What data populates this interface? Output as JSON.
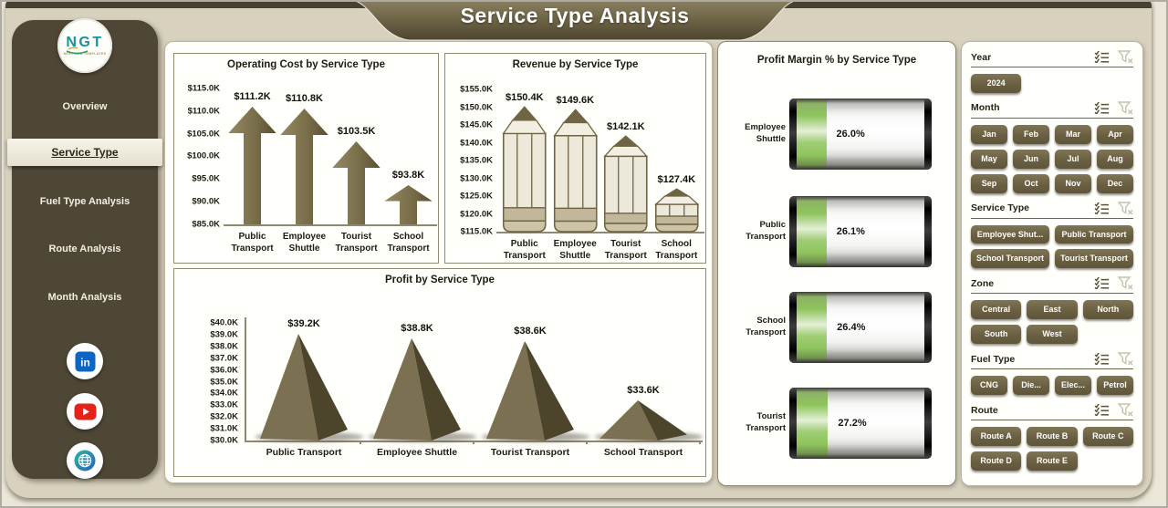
{
  "page": {
    "title": "Service Type Analysis"
  },
  "sidebar": {
    "logo": {
      "abbr": "NGT",
      "tagline": "NEXT GEN TEMPLATES"
    },
    "items": [
      {
        "label": "Overview",
        "active": false
      },
      {
        "label": "Service Type",
        "active": true
      },
      {
        "label": "Fuel Type Analysis",
        "active": false
      },
      {
        "label": "Route Analysis",
        "active": false
      },
      {
        "label": "Month Analysis",
        "active": false
      }
    ],
    "social": [
      {
        "icon": "linkedin-icon"
      },
      {
        "icon": "youtube-icon"
      },
      {
        "icon": "globe-icon"
      }
    ]
  },
  "chart_data": [
    {
      "type": "bar",
      "variant": "arrow",
      "title": "Operating Cost by Service Type",
      "categories": [
        "Public Transport",
        "Employee Shuttle",
        "Tourist Transport",
        "School Transport"
      ],
      "values": [
        111.2,
        110.8,
        103.5,
        93.8
      ],
      "value_labels": [
        "$111.2K",
        "$110.8K",
        "$103.5K",
        "$93.8K"
      ],
      "ytick_labels": [
        "$115.0K",
        "$110.0K",
        "$105.0K",
        "$100.0K",
        "$95.0K",
        "$90.0K",
        "$85.0K"
      ],
      "ylim": [
        85,
        115
      ],
      "grid": false
    },
    {
      "type": "bar",
      "variant": "pencil",
      "title": "Revenue by Service Type",
      "categories": [
        "Public Transport",
        "Employee Shuttle",
        "Tourist Transport",
        "School Transport"
      ],
      "values": [
        150.4,
        149.6,
        142.1,
        127.4
      ],
      "value_labels": [
        "$150.4K",
        "$149.6K",
        "$142.1K",
        "$127.4K"
      ],
      "ytick_labels": [
        "$155.0K",
        "$150.0K",
        "$145.0K",
        "$140.0K",
        "$135.0K",
        "$130.0K",
        "$125.0K",
        "$120.0K",
        "$115.0K"
      ],
      "ylim": [
        115,
        155
      ],
      "grid": false
    },
    {
      "type": "bar",
      "variant": "pyramid",
      "title": "Profit by Service Type",
      "categories": [
        "Public Transport",
        "Employee Shuttle",
        "Tourist Transport",
        "School Transport"
      ],
      "values": [
        39.2,
        38.8,
        38.6,
        33.6
      ],
      "value_labels": [
        "$39.2K",
        "$38.8K",
        "$38.6K",
        "$33.6K"
      ],
      "ytick_labels": [
        "$40.0K",
        "$39.0K",
        "$38.0K",
        "$37.0K",
        "$36.0K",
        "$35.0K",
        "$34.0K",
        "$33.0K",
        "$32.0K",
        "$31.0K",
        "$30.0K"
      ],
      "ylim": [
        30,
        40
      ],
      "grid": false
    },
    {
      "type": "bar",
      "variant": "battery",
      "orientation": "horizontal",
      "title": "Profit Margin % by Service Type",
      "categories": [
        "Employee Shuttle",
        "Public Transport",
        "School Transport",
        "Tourist Transport"
      ],
      "values": [
        26.0,
        26.1,
        26.4,
        27.2
      ],
      "value_labels": [
        "26.0%",
        "26.1%",
        "26.4%",
        "27.2%"
      ],
      "xlim": [
        0,
        100
      ],
      "fill_color": "#8ec45c"
    }
  ],
  "filters": {
    "multi_select_icon": "checklist-icon",
    "clear_filter_icon": "funnel-x-icon",
    "sections": [
      {
        "label": "Year",
        "cols": 3,
        "options": [
          "2024"
        ]
      },
      {
        "label": "Month",
        "cols": 4,
        "options": [
          "Jan",
          "Feb",
          "Mar",
          "Apr",
          "May",
          "Jun",
          "Jul",
          "Aug",
          "Sep",
          "Oct",
          "Nov",
          "Dec"
        ]
      },
      {
        "label": "Service Type",
        "cols": 2,
        "options": [
          "Employee Shut...",
          "Public Transport",
          "School Transport",
          "Tourist Transport"
        ]
      },
      {
        "label": "Zone",
        "cols": 3,
        "options": [
          "Central",
          "East",
          "North",
          "South",
          "West"
        ]
      },
      {
        "label": "Fuel Type",
        "cols": 4,
        "options": [
          "CNG",
          "Die...",
          "Elec...",
          "Petrol"
        ]
      },
      {
        "label": "Route",
        "cols": 3,
        "options": [
          "Route A",
          "Route B",
          "Route C",
          "Route D",
          "Route E"
        ]
      }
    ]
  }
}
